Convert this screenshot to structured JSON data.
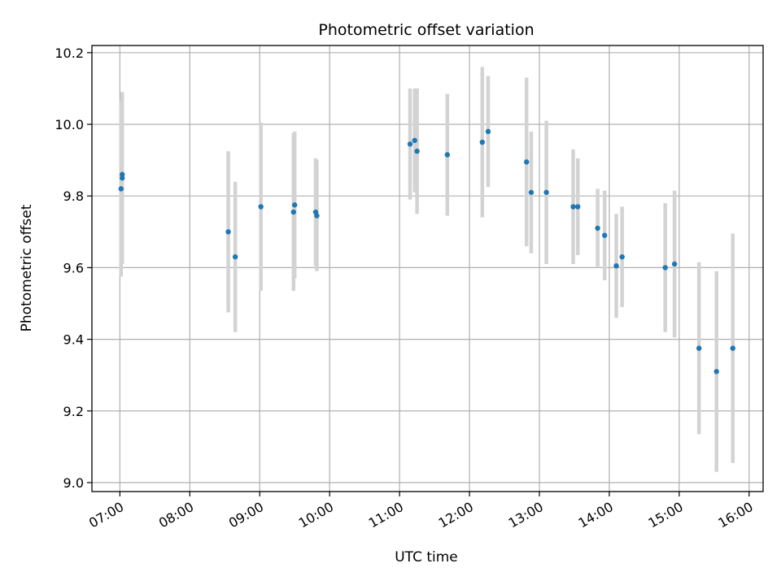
{
  "chart_data": {
    "type": "scatter",
    "title": "Photometric offset variation",
    "xlabel": "UTC time",
    "ylabel": "Photometric offset",
    "x_axis_type": "time",
    "xlim": [
      "06:36",
      "16:12"
    ],
    "ylim": [
      8.975,
      10.22
    ],
    "grid": true,
    "x_ticks": [
      "07:00",
      "08:00",
      "09:00",
      "10:00",
      "11:00",
      "12:00",
      "13:00",
      "14:00",
      "15:00",
      "16:00"
    ],
    "y_ticks": [
      9.0,
      9.2,
      9.4,
      9.6,
      9.8,
      10.0,
      10.2
    ],
    "y_tick_labels": [
      "9.0",
      "9.2",
      "9.4",
      "9.6",
      "9.8",
      "10.0",
      "10.2"
    ],
    "marker_color": "#1f77b4",
    "errorbar_color": "#d3d3d3",
    "series": [
      {
        "points": [
          {
            "x": "07:01",
            "y": 9.82,
            "err": 0.245
          },
          {
            "x": "07:02",
            "y": 9.85,
            "err": 0.24
          },
          {
            "x": "07:02",
            "y": 9.86,
            "err": 0.23
          },
          {
            "x": "08:33",
            "y": 9.7,
            "err": 0.225
          },
          {
            "x": "08:39",
            "y": 9.63,
            "err": 0.21
          },
          {
            "x": "09:01",
            "y": 9.77,
            "err": 0.235
          },
          {
            "x": "09:29",
            "y": 9.755,
            "err": 0.22
          },
          {
            "x": "09:30",
            "y": 9.775,
            "err": 0.205
          },
          {
            "x": "09:48",
            "y": 9.755,
            "err": 0.15
          },
          {
            "x": "09:49",
            "y": 9.745,
            "err": 0.155
          },
          {
            "x": "11:09",
            "y": 9.945,
            "err": 0.155
          },
          {
            "x": "11:13",
            "y": 9.955,
            "err": 0.145
          },
          {
            "x": "11:15",
            "y": 9.925,
            "err": 0.175
          },
          {
            "x": "11:41",
            "y": 9.915,
            "err": 0.17
          },
          {
            "x": "12:11",
            "y": 9.95,
            "err": 0.21
          },
          {
            "x": "12:16",
            "y": 9.98,
            "err": 0.155
          },
          {
            "x": "12:49",
            "y": 9.895,
            "err": 0.235
          },
          {
            "x": "12:53",
            "y": 9.81,
            "err": 0.17
          },
          {
            "x": "13:06",
            "y": 9.81,
            "err": 0.2
          },
          {
            "x": "13:29",
            "y": 9.77,
            "err": 0.16
          },
          {
            "x": "13:33",
            "y": 9.77,
            "err": 0.135
          },
          {
            "x": "13:50",
            "y": 9.71,
            "err": 0.11
          },
          {
            "x": "13:56",
            "y": 9.69,
            "err": 0.125
          },
          {
            "x": "14:06",
            "y": 9.605,
            "err": 0.145
          },
          {
            "x": "14:11",
            "y": 9.63,
            "err": 0.14
          },
          {
            "x": "14:48",
            "y": 9.6,
            "err": 0.18
          },
          {
            "x": "14:56",
            "y": 9.61,
            "err": 0.205
          },
          {
            "x": "15:17",
            "y": 9.375,
            "err": 0.24
          },
          {
            "x": "15:32",
            "y": 9.31,
            "err": 0.28
          },
          {
            "x": "15:46",
            "y": 9.375,
            "err": 0.32
          }
        ]
      }
    ]
  }
}
